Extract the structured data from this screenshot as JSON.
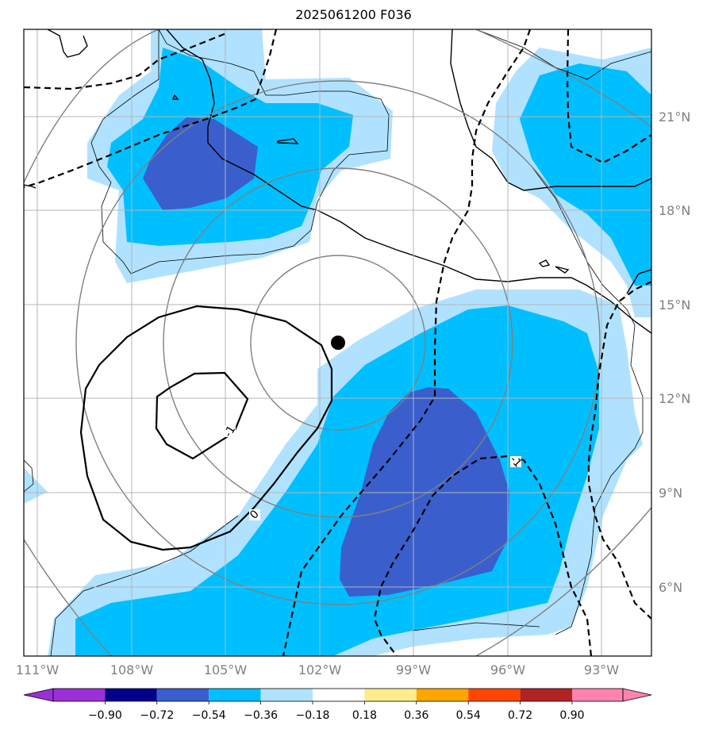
{
  "title": "2025061200 F036",
  "map": {
    "lat_labels": [
      "21°N",
      "18°N",
      "15°N",
      "12°N",
      "9°N",
      "6°N"
    ],
    "lon_labels": [
      "111°W",
      "108°W",
      "105°W",
      "102°W",
      "99°W",
      "96°W",
      "93°W"
    ],
    "contour_labels": [
      "-1",
      "0",
      "-1"
    ],
    "center_marker": "storm-center-dot"
  },
  "colorbar": {
    "ticks": [
      "−0.90",
      "−0.72",
      "−0.54",
      "−0.36",
      "−0.18",
      "0.18",
      "0.36",
      "0.54",
      "0.72",
      "0.90"
    ],
    "colors": [
      "#9b30d8",
      "#00008b",
      "#3a5fcd",
      "#00bfff",
      "#b0e2ff",
      "#ffffff",
      "#ffec8b",
      "#ffa500",
      "#ff4500",
      "#b22222",
      "#ff83b0",
      "#ff83b0"
    ]
  }
}
